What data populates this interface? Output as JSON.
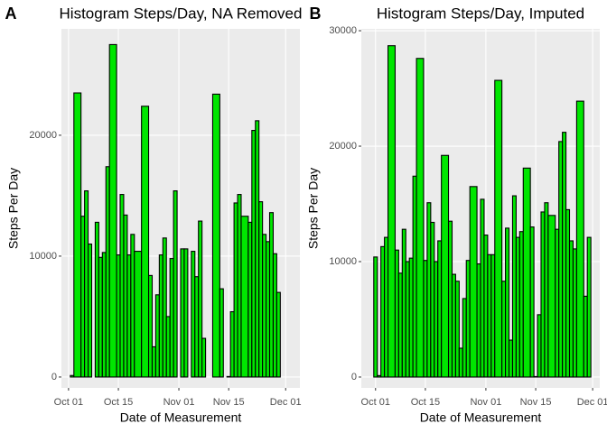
{
  "chart_data": [
    {
      "type": "bar",
      "label": "A",
      "title": "Histogram Steps/Day, NA Removed",
      "x_label": "Date of Measurement",
      "y_label": "Steps Per Day",
      "color": "#00e600",
      "edge_color": "#000000",
      "grid": true,
      "x": [
        "Oct 01",
        "Oct 02",
        "Oct 03",
        "Oct 05",
        "Oct 06",
        "Oct 07",
        "Oct 08",
        "Oct 09",
        "Oct 10",
        "Oct 11",
        "Oct 12",
        "Oct 13",
        "Oct 15",
        "Oct 16",
        "Oct 17",
        "Oct 18",
        "Oct 19",
        "Oct 20",
        "Oct 22",
        "Oct 24",
        "Oct 25",
        "Oct 26",
        "Oct 27",
        "Oct 28",
        "Oct 29",
        "Oct 30",
        "Oct 31",
        "Nov 01",
        "Nov 02",
        "Nov 03",
        "Nov 04",
        "Nov 05",
        "Nov 06",
        "Nov 07",
        "Nov 08",
        "Nov 09",
        "Nov 10",
        "Nov 11",
        "Nov 13",
        "Nov 14",
        "Nov 15",
        "Nov 16",
        "Nov 17",
        "Nov 18",
        "Nov 19",
        "Nov 21",
        "Nov 22",
        "Nov 23",
        "Nov 24",
        "Nov 25",
        "Nov 26",
        "Nov 27",
        "Nov 28",
        "Nov 29",
        "Nov 30"
      ],
      "values": [
        null,
        126,
        23500,
        13300,
        15400,
        11000,
        null,
        12800,
        9900,
        10300,
        17400,
        27500,
        10100,
        15100,
        13400,
        10100,
        11800,
        10400,
        22400,
        8400,
        2500,
        6800,
        10100,
        11500,
        5000,
        9800,
        15400,
        null,
        10600,
        10600,
        null,
        10400,
        8300,
        12900,
        3200,
        null,
        null,
        23400,
        7300,
        null,
        41,
        5400,
        14400,
        15100,
        13300,
        12800,
        20400,
        21200,
        14500,
        11800,
        11200,
        13600,
        10200,
        7000,
        null
      ],
      "xlim": [
        "Sep 29",
        "Dec 05"
      ],
      "xticks": [
        "Oct 01",
        "Oct 15",
        "Nov 01",
        "Nov 15",
        "Dec 01"
      ],
      "ylim": [
        -900,
        28800
      ],
      "yticks": [
        0,
        10000,
        20000
      ]
    },
    {
      "type": "bar",
      "label": "B",
      "title": "Histogram Steps/Day, Imputed",
      "x_label": "Date of Measurement",
      "y_label": "Steps Per Day",
      "color": "#00e600",
      "edge_color": "#000000",
      "grid": true,
      "x": [
        "Oct 01",
        "Oct 02",
        "Oct 03",
        "Oct 04",
        "Oct 05",
        "Oct 07",
        "Oct 08",
        "Oct 09",
        "Oct 10",
        "Oct 11",
        "Oct 12",
        "Oct 13",
        "Oct 15",
        "Oct 16",
        "Oct 17",
        "Oct 18",
        "Oct 19",
        "Oct 20",
        "Oct 22",
        "Oct 23",
        "Oct 24",
        "Oct 25",
        "Oct 26",
        "Oct 27",
        "Oct 28",
        "Oct 30",
        "Oct 31",
        "Nov 01",
        "Nov 02",
        "Nov 03",
        "Nov 04",
        "Nov 06",
        "Nov 07",
        "Nov 08",
        "Nov 09",
        "Nov 10",
        "Nov 11",
        "Nov 12",
        "Nov 14",
        "Nov 15",
        "Nov 16",
        "Nov 17",
        "Nov 18",
        "Nov 19",
        "Nov 21",
        "Nov 22",
        "Nov 23",
        "Nov 24",
        "Nov 25",
        "Nov 26",
        "Nov 27",
        "Nov 29",
        "Nov 30"
      ],
      "values": [
        10400,
        126,
        11300,
        12100,
        28700,
        11000,
        9000,
        12800,
        10000,
        10300,
        17400,
        27600,
        10100,
        15100,
        13400,
        10000,
        11800,
        19200,
        13500,
        8900,
        8300,
        2500,
        6800,
        10100,
        16500,
        9800,
        15400,
        12300,
        10600,
        10600,
        25700,
        8300,
        12900,
        3200,
        15700,
        12100,
        12600,
        18100,
        13000,
        41,
        5400,
        14300,
        15100,
        14000,
        12800,
        20400,
        21200,
        14500,
        11800,
        11100,
        23900,
        7000,
        12100
      ],
      "xlim": [
        "Sep 27",
        "Dec 03"
      ],
      "xticks": [
        "Oct 01",
        "Oct 15",
        "Nov 01",
        "Nov 15",
        "Dec 01"
      ],
      "ylim": [
        -940,
        30160
      ],
      "yticks": [
        0,
        10000,
        20000,
        30000
      ]
    }
  ]
}
